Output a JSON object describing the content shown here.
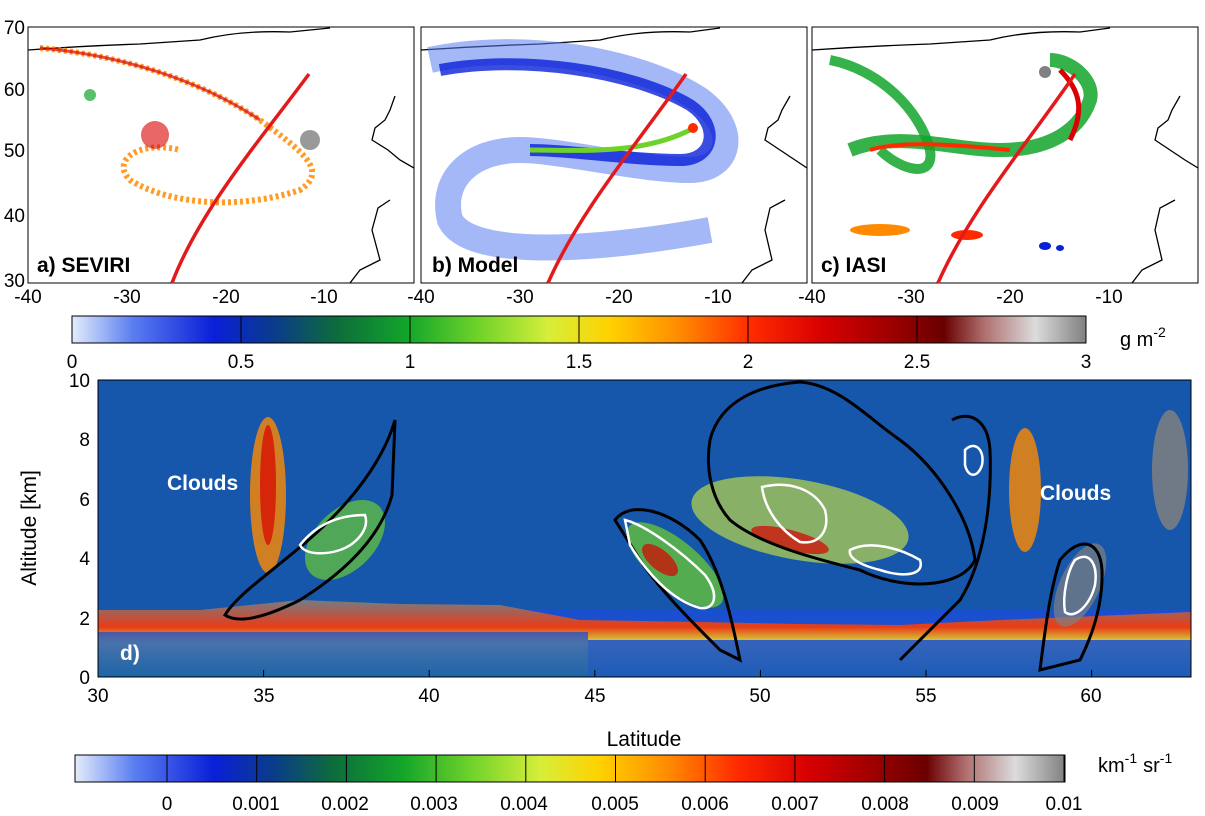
{
  "chart_data": [
    {
      "type": "heatmap",
      "panel": "a) SEVIRI",
      "xticks": [
        -40,
        -30,
        -20,
        -10
      ],
      "yticks": [
        30,
        40,
        50,
        60,
        70
      ],
      "xlim": [
        -40,
        -1
      ],
      "ylim": [
        30,
        70
      ]
    },
    {
      "type": "heatmap",
      "panel": "b) Model",
      "xticks": [
        -40,
        -30,
        -20,
        -10
      ],
      "xlim": [
        -40,
        -1
      ],
      "ylim": [
        30,
        70
      ]
    },
    {
      "type": "heatmap",
      "panel": "c) IASI",
      "xticks": [
        -40,
        -30,
        -20,
        -10
      ],
      "xlim": [
        -40,
        -1
      ],
      "ylim": [
        30,
        70
      ]
    },
    {
      "type": "heatmap",
      "panel": "d)",
      "xlabel": "Latitude",
      "ylabel": "Altitude [km]",
      "xticks": [
        30,
        35,
        40,
        45,
        50,
        55,
        60
      ],
      "yticks": [
        0,
        2,
        4,
        6,
        8,
        10
      ],
      "xlim": [
        30,
        63
      ],
      "ylim": [
        0,
        10
      ],
      "annotations": [
        "Clouds",
        "Clouds"
      ]
    }
  ],
  "colorbars": {
    "top": {
      "ticks": [
        "0",
        "0.5",
        "1",
        "1.5",
        "2",
        "2.5",
        "3"
      ],
      "unit_base": "g m",
      "unit_exp": "-2"
    },
    "bottom": {
      "ticks": [
        "0",
        "0.001",
        "0.002",
        "0.003",
        "0.004",
        "0.005",
        "0.006",
        "0.007",
        "0.008",
        "0.009",
        "0.01"
      ],
      "unit_km": "km",
      "unit_km_exp": "-1",
      "unit_sr": "sr",
      "unit_sr_exp": "-1"
    }
  },
  "colors": {
    "track": "#e31a1c",
    "background_curtain": "#1a4fd0",
    "ground": "#808080"
  }
}
